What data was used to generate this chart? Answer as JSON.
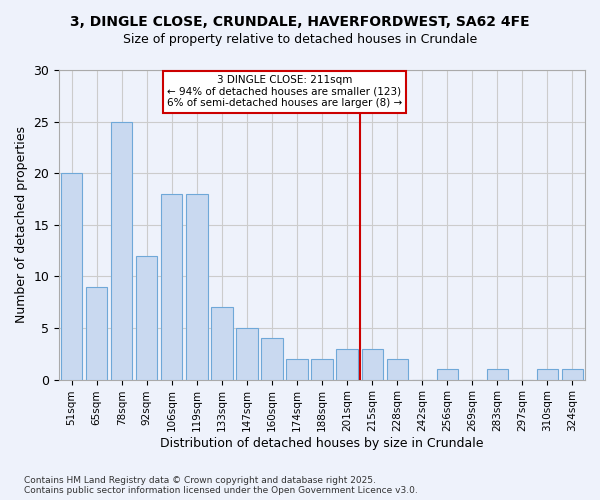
{
  "title_line1": "3, DINGLE CLOSE, CRUNDALE, HAVERFORDWEST, SA62 4FE",
  "title_line2": "Size of property relative to detached houses in Crundale",
  "xlabel": "Distribution of detached houses by size in Crundale",
  "ylabel": "Number of detached properties",
  "bar_labels": [
    "51sqm",
    "65sqm",
    "78sqm",
    "92sqm",
    "106sqm",
    "119sqm",
    "133sqm",
    "147sqm",
    "160sqm",
    "174sqm",
    "188sqm",
    "201sqm",
    "215sqm",
    "228sqm",
    "242sqm",
    "256sqm",
    "269sqm",
    "283sqm",
    "297sqm",
    "310sqm",
    "324sqm"
  ],
  "bar_values": [
    20,
    9,
    25,
    12,
    18,
    18,
    7,
    5,
    4,
    2,
    2,
    3,
    3,
    2,
    0,
    1,
    0,
    1,
    0,
    1,
    1
  ],
  "bar_color": "#c9d9f0",
  "bar_edgecolor": "#6fa8d8",
  "vline_color": "#cc0000",
  "annotation_title": "3 DINGLE CLOSE: 211sqm",
  "annotation_line1": "← 94% of detached houses are smaller (123)",
  "annotation_line2": "6% of semi-detached houses are larger (8) →",
  "annotation_box_color": "#cc0000",
  "ylim": [
    0,
    30
  ],
  "yticks": [
    0,
    5,
    10,
    15,
    20,
    25,
    30
  ],
  "grid_color": "#cccccc",
  "bg_color": "#eef2fb",
  "footnote_line1": "Contains HM Land Registry data © Crown copyright and database right 2025.",
  "footnote_line2": "Contains public sector information licensed under the Open Government Licence v3.0."
}
